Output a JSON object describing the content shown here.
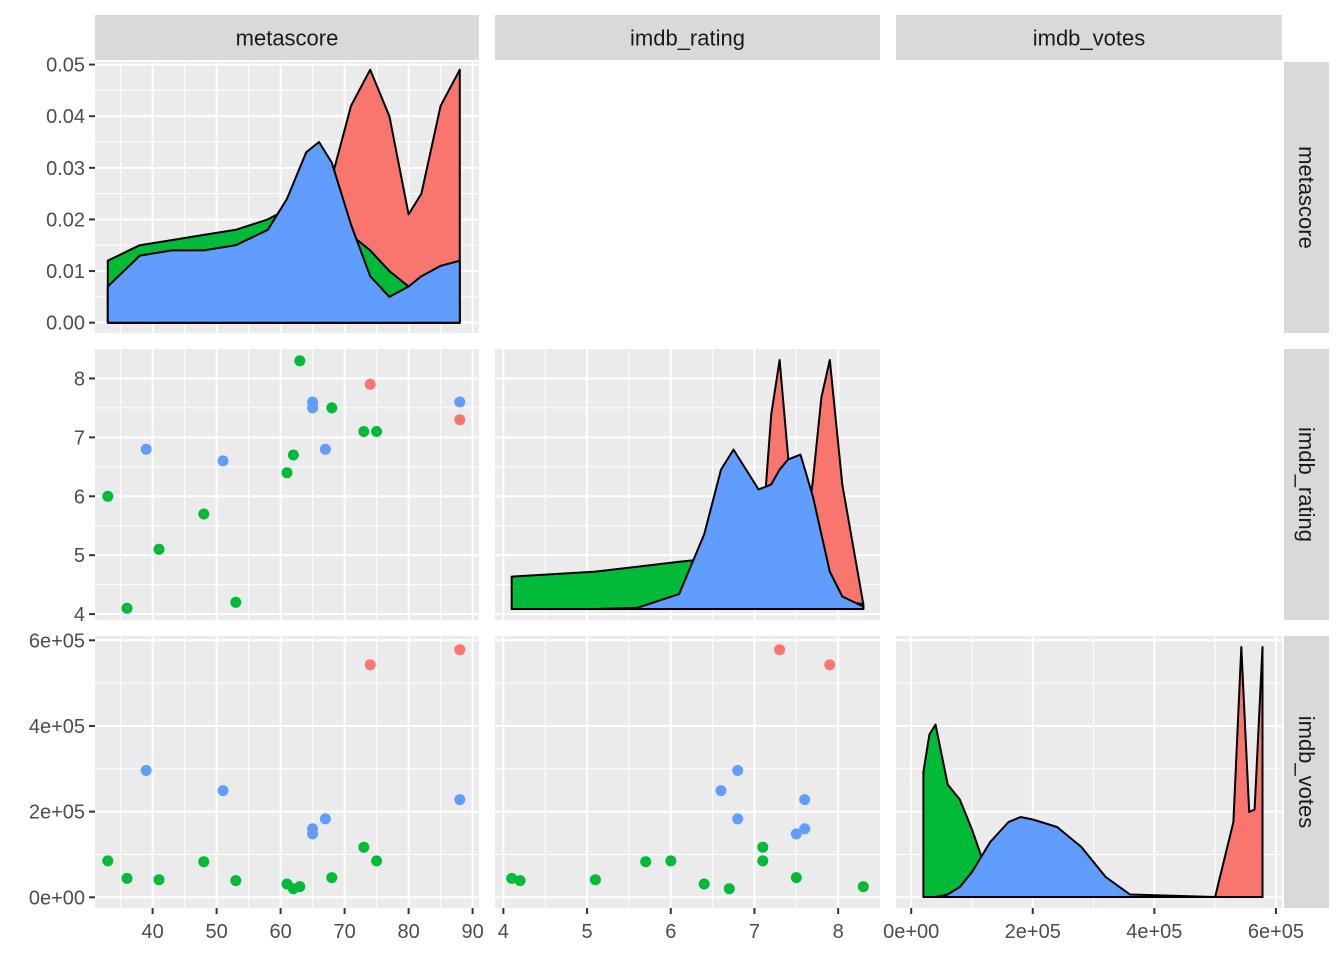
{
  "chart_data": {
    "type": "scatterplot-matrix",
    "variables": [
      "metascore",
      "imdb_rating",
      "imdb_votes"
    ],
    "group_colors": [
      "#F8766D",
      "#00BA38",
      "#619CFF"
    ],
    "panel_background": "#EBEBEB",
    "strip_background": "#D9D9D9",
    "points": [
      {
        "metascore": 74,
        "imdb_rating": 7.9,
        "imdb_votes": 543000,
        "group": 0
      },
      {
        "metascore": 88,
        "imdb_rating": 7.3,
        "imdb_votes": 578000,
        "group": 0
      },
      {
        "metascore": 33,
        "imdb_rating": 6.0,
        "imdb_votes": 85000,
        "group": 1
      },
      {
        "metascore": 36,
        "imdb_rating": 4.1,
        "imdb_votes": 44000,
        "group": 1
      },
      {
        "metascore": 41,
        "imdb_rating": 5.1,
        "imdb_votes": 41000,
        "group": 1
      },
      {
        "metascore": 48,
        "imdb_rating": 5.7,
        "imdb_votes": 83000,
        "group": 1
      },
      {
        "metascore": 53,
        "imdb_rating": 4.2,
        "imdb_votes": 39000,
        "group": 1
      },
      {
        "metascore": 61,
        "imdb_rating": 6.4,
        "imdb_votes": 31000,
        "group": 1
      },
      {
        "metascore": 62,
        "imdb_rating": 6.7,
        "imdb_votes": 20000,
        "group": 1
      },
      {
        "metascore": 63,
        "imdb_rating": 8.3,
        "imdb_votes": 25000,
        "group": 1
      },
      {
        "metascore": 68,
        "imdb_rating": 7.5,
        "imdb_votes": 46000,
        "group": 1
      },
      {
        "metascore": 73,
        "imdb_rating": 7.1,
        "imdb_votes": 117000,
        "group": 1
      },
      {
        "metascore": 75,
        "imdb_rating": 7.1,
        "imdb_votes": 85000,
        "group": 1
      },
      {
        "metascore": 39,
        "imdb_rating": 6.8,
        "imdb_votes": 296000,
        "group": 2
      },
      {
        "metascore": 51,
        "imdb_rating": 6.6,
        "imdb_votes": 249000,
        "group": 2
      },
      {
        "metascore": 65,
        "imdb_rating": 7.6,
        "imdb_votes": 160000,
        "group": 2
      },
      {
        "metascore": 65,
        "imdb_rating": 7.5,
        "imdb_votes": 148000,
        "group": 2
      },
      {
        "metascore": 67,
        "imdb_rating": 6.8,
        "imdb_votes": 183000,
        "group": 2
      },
      {
        "metascore": 88,
        "imdb_rating": 7.6,
        "imdb_votes": 228000,
        "group": 2
      }
    ],
    "axes": {
      "metascore": {
        "range": [
          31,
          91
        ],
        "ticks": [
          40,
          50,
          60,
          70,
          80,
          90
        ],
        "tick_labels": [
          "40",
          "50",
          "60",
          "70",
          "80",
          "90"
        ]
      },
      "imdb_rating": {
        "range": [
          3.9,
          8.5
        ],
        "ticks": [
          4,
          5,
          6,
          7,
          8
        ],
        "tick_labels": [
          "4",
          "5",
          "6",
          "7",
          "8"
        ]
      },
      "imdb_votes": {
        "range": [
          -25000,
          610000
        ],
        "ticks": [
          0,
          200000,
          400000,
          600000
        ],
        "tick_labels": [
          "0e+00",
          "2e+05",
          "4e+05",
          "6e+05"
        ]
      }
    },
    "density_axis": {
      "range": [
        -0.002,
        0.0505
      ],
      "ticks": [
        0,
        0.01,
        0.02,
        0.03,
        0.04,
        0.05
      ],
      "tick_labels": [
        "0.00",
        "0.01",
        "0.02",
        "0.03",
        "0.04",
        "0.05"
      ]
    },
    "densities": {
      "metascore": {
        "x": [
          33,
          38,
          43,
          48,
          53,
          58,
          61,
          64,
          66,
          68,
          71,
          74,
          77,
          80,
          82,
          85,
          88
        ],
        "series": [
          {
            "group": 0,
            "y": [
              0,
              0,
              0,
              0,
              0,
              0,
              0,
              0.005,
              0.018,
              0.028,
              0.042,
              0.049,
              0.04,
              0.021,
              0.025,
              0.042,
              0.049
            ]
          },
          {
            "group": 1,
            "y": [
              0.012,
              0.015,
              0.016,
              0.017,
              0.018,
              0.02,
              0.022,
              0.023,
              0.022,
              0.02,
              0.017,
              0.014,
              0.01,
              0.007,
              0.006,
              0.004,
              0.002
            ]
          },
          {
            "group": 2,
            "y": [
              0.007,
              0.013,
              0.014,
              0.014,
              0.015,
              0.018,
              0.024,
              0.033,
              0.035,
              0.031,
              0.019,
              0.009,
              0.005,
              0.007,
              0.009,
              0.011,
              0.012
            ]
          }
        ]
      },
      "imdb_rating": {
        "x": [
          4.1,
          4.6,
          5.1,
          5.6,
          6.1,
          6.4,
          6.6,
          6.75,
          6.9,
          7.05,
          7.2,
          7.3,
          7.4,
          7.55,
          7.7,
          7.8,
          7.9,
          8.05,
          8.3
        ],
        "series": [
          {
            "group": 0,
            "y": [
              0,
              0,
              0,
              0,
              0,
              0,
              0,
              0.003,
              0.01,
              0.1,
              0.78,
              1.0,
              0.62,
              0.12,
              0.52,
              0.85,
              1.0,
              0.5,
              0.02
            ]
          },
          {
            "group": 1,
            "y": [
              0.13,
              0.14,
              0.15,
              0.17,
              0.19,
              0.2,
              0.2,
              0.2,
              0.19,
              0.17,
              0.14,
              0.12,
              0.1,
              0.08,
              0.06,
              0.05,
              0.04,
              0.03,
              0.02
            ]
          },
          {
            "group": 2,
            "y": [
              0,
              0,
              0,
              0.005,
              0.06,
              0.3,
              0.56,
              0.64,
              0.56,
              0.48,
              0.5,
              0.56,
              0.6,
              0.62,
              0.45,
              0.3,
              0.15,
              0.05,
              0.01
            ]
          }
        ]
      },
      "imdb_votes": {
        "x": [
          20000,
          30000,
          40000,
          60000,
          80000,
          100000,
          130000,
          160000,
          180000,
          200000,
          240000,
          280000,
          320000,
          360000,
          500000,
          530000,
          543000,
          556000,
          565000,
          578000
        ],
        "series": [
          {
            "group": 0,
            "y": [
              0,
              0,
              0,
              0,
              0,
              0,
              0,
              0,
              0,
              0,
              0,
              0,
              0,
              0,
              0,
              0.3,
              1.0,
              0.34,
              0.35,
              1.0
            ]
          },
          {
            "group": 1,
            "y": [
              0.5,
              0.65,
              0.69,
              0.45,
              0.39,
              0.27,
              0.06,
              0.02,
              0.01,
              0,
              0,
              0,
              0,
              0,
              0,
              0,
              0,
              0,
              0,
              0
            ]
          },
          {
            "group": 2,
            "y": [
              0,
              0,
              0,
              0.01,
              0.04,
              0.1,
              0.22,
              0.3,
              0.32,
              0.31,
              0.28,
              0.2,
              0.08,
              0.01,
              0,
              0,
              0,
              0,
              0,
              0
            ]
          }
        ]
      }
    }
  }
}
